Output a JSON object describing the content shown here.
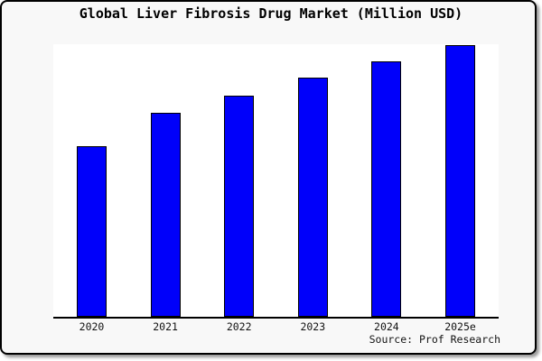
{
  "chart": {
    "title": "Global Liver Fibrosis Drug Market (Million USD)",
    "source": "Source: Prof Research"
  },
  "chart_data": {
    "type": "bar",
    "title": "Global Liver Fibrosis Drug Market (Million USD)",
    "categories": [
      "2020",
      "2021",
      "2022",
      "2023",
      "2024",
      "2025e"
    ],
    "values": [
      62.8,
      75.2,
      81.4,
      87.9,
      94.0,
      100
    ],
    "value_note": "No y-axis or data labels shown; values are relative bar heights with 2025e = 100",
    "xlabel": "",
    "ylabel": "",
    "ylim": [
      0,
      100
    ],
    "grid": false,
    "legend": false,
    "annotations": [
      "Source: Prof Research"
    ],
    "bar_color": "#0000fa",
    "bar_border_color": "#000000",
    "background_color": "#f8f8f8",
    "plot_background_color": "#ffffff"
  }
}
